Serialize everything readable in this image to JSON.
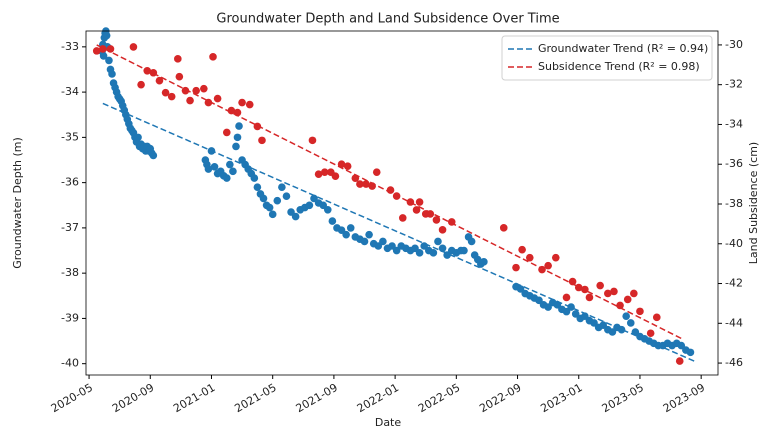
{
  "chart_data": {
    "type": "scatter",
    "title": "Groundwater Depth and Land Subsidence Over Time",
    "xlabel": "Date",
    "ylabel": "Groundwater Depth (m)",
    "y2label": "Land Subsidence (cm)",
    "xlim": [
      -0.2,
      41.1
    ],
    "xticks": [
      {
        "value": 0,
        "label": "2020-05"
      },
      {
        "value": 4,
        "label": "2020-09"
      },
      {
        "value": 8,
        "label": "2021-01"
      },
      {
        "value": 12,
        "label": "2021-05"
      },
      {
        "value": 16,
        "label": "2021-09"
      },
      {
        "value": 20,
        "label": "2022-01"
      },
      {
        "value": 24,
        "label": "2022-05"
      },
      {
        "value": 28,
        "label": "2022-09"
      },
      {
        "value": 32,
        "label": "2023-01"
      },
      {
        "value": 36,
        "label": "2023-05"
      },
      {
        "value": 40,
        "label": "2023-09"
      }
    ],
    "ylim": [
      -40.25,
      -32.65
    ],
    "yticks": [
      -40,
      -39,
      -38,
      -37,
      -36,
      -35,
      -34,
      -33
    ],
    "y2lim": [
      -46.6,
      -29.3
    ],
    "y2ticks": [
      -46,
      -44,
      -42,
      -40,
      -38,
      -36,
      -34,
      -32,
      -30
    ],
    "legend": "upper right",
    "series": [
      {
        "type": "scatter",
        "color": "#1f77b4",
        "x": [
          0.85,
          0.9,
          0.95,
          1.0,
          1.05,
          1.1,
          1.15,
          1.2,
          1.3,
          1.4,
          1.5,
          1.6,
          1.7,
          1.8,
          1.9,
          2.0,
          2.1,
          2.2,
          2.3,
          2.4,
          2.5,
          2.6,
          2.7,
          2.8,
          2.9,
          3.0,
          3.1,
          3.2,
          3.3,
          3.4,
          3.5,
          3.6,
          3.7,
          3.8,
          3.9,
          4.0,
          4.1,
          4.2,
          7.6,
          7.7,
          7.8,
          8.0,
          8.2,
          8.4,
          8.6,
          8.8,
          9.0,
          9.2,
          9.4,
          9.6,
          9.7,
          9.8,
          10.0,
          10.2,
          10.4,
          10.6,
          10.8,
          11.0,
          11.2,
          11.4,
          11.6,
          11.8,
          12.0,
          12.3,
          12.6,
          12.9,
          13.2,
          13.5,
          13.8,
          14.1,
          14.4,
          14.7,
          15.0,
          15.3,
          15.6,
          15.9,
          16.2,
          16.5,
          16.8,
          17.1,
          17.4,
          17.7,
          18.0,
          18.3,
          18.6,
          18.9,
          19.2,
          19.5,
          19.8,
          20.1,
          20.4,
          20.7,
          21.0,
          21.3,
          21.6,
          21.9,
          22.2,
          22.5,
          22.8,
          23.1,
          23.4,
          23.7,
          24.0,
          24.3,
          24.5,
          24.8,
          25.0,
          25.2,
          25.4,
          25.6,
          25.8,
          27.9,
          28.2,
          28.5,
          28.8,
          29.1,
          29.4,
          29.7,
          30.0,
          30.3,
          30.6,
          30.9,
          31.2,
          31.5,
          31.8,
          32.1,
          32.4,
          32.7,
          33.0,
          33.3,
          33.6,
          33.9,
          34.2,
          34.5,
          34.8,
          35.1,
          35.4,
          35.7,
          36.0,
          36.3,
          36.6,
          36.9,
          37.2,
          37.5,
          37.8,
          38.1,
          38.4,
          38.7,
          39.0,
          39.3
        ],
        "values": [
          -33.1,
          -32.95,
          -33.2,
          -32.8,
          -32.7,
          -32.65,
          -32.75,
          -33.0,
          -33.3,
          -33.5,
          -33.6,
          -33.8,
          -33.9,
          -34.0,
          -34.1,
          -34.15,
          -34.2,
          -34.3,
          -34.4,
          -34.5,
          -34.6,
          -34.7,
          -34.8,
          -34.85,
          -34.9,
          -35.0,
          -35.1,
          -35.0,
          -35.2,
          -35.15,
          -35.25,
          -35.2,
          -35.3,
          -35.2,
          -35.3,
          -35.25,
          -35.35,
          -35.4,
          -35.5,
          -35.6,
          -35.7,
          -35.3,
          -35.65,
          -35.8,
          -35.75,
          -35.85,
          -35.9,
          -35.6,
          -35.75,
          -35.2,
          -35.0,
          -34.75,
          -35.5,
          -35.6,
          -35.7,
          -35.8,
          -35.9,
          -36.1,
          -36.25,
          -36.35,
          -36.5,
          -36.55,
          -36.7,
          -36.4,
          -36.1,
          -36.3,
          -36.65,
          -36.75,
          -36.6,
          -36.55,
          -36.5,
          -36.35,
          -36.45,
          -36.5,
          -36.6,
          -36.85,
          -37.0,
          -37.05,
          -37.15,
          -37.0,
          -37.2,
          -37.25,
          -37.3,
          -37.15,
          -37.35,
          -37.4,
          -37.3,
          -37.45,
          -37.4,
          -37.5,
          -37.4,
          -37.45,
          -37.5,
          -37.45,
          -37.55,
          -37.4,
          -37.5,
          -37.55,
          -37.3,
          -37.45,
          -37.6,
          -37.5,
          -37.55,
          -37.5,
          -37.5,
          -37.2,
          -37.3,
          -37.6,
          -37.7,
          -37.8,
          -37.75,
          -38.3,
          -38.35,
          -38.45,
          -38.5,
          -38.55,
          -38.6,
          -38.7,
          -38.75,
          -38.65,
          -38.7,
          -38.8,
          -38.85,
          -38.75,
          -38.9,
          -39.0,
          -38.95,
          -39.05,
          -39.1,
          -39.2,
          -39.15,
          -39.25,
          -39.3,
          -39.2,
          -39.25,
          -38.95,
          -39.1,
          -39.3,
          -39.4,
          -39.45,
          -39.5,
          -39.55,
          -39.6,
          -39.6,
          -39.55,
          -39.6,
          -39.55,
          -39.6,
          -39.7,
          -39.75
        ]
      },
      {
        "type": "scatter",
        "color": "#d62728",
        "axis": "y2",
        "x": [
          0.5,
          0.9,
          1.4,
          2.9,
          3.4,
          3.8,
          4.2,
          4.6,
          5.0,
          5.4,
          5.8,
          5.9,
          6.3,
          6.6,
          7.0,
          7.5,
          7.8,
          8.1,
          8.4,
          9.0,
          9.3,
          9.7,
          10.0,
          10.5,
          11.0,
          11.3,
          14.6,
          15.0,
          15.4,
          15.8,
          16.1,
          16.5,
          16.9,
          17.4,
          17.7,
          18.1,
          18.5,
          18.8,
          19.7,
          20.1,
          20.5,
          21.0,
          21.4,
          21.6,
          22.0,
          22.3,
          22.7,
          23.1,
          23.7,
          27.1,
          27.9,
          28.3,
          28.8,
          29.6,
          30.0,
          30.5,
          31.2,
          31.6,
          32.0,
          32.4,
          32.7,
          33.4,
          33.9,
          34.3,
          34.7,
          35.2,
          35.6,
          36.0,
          36.7,
          37.1,
          38.6
        ],
        "values": [
          -30.3,
          -30.2,
          -30.2,
          -30.1,
          -32.0,
          -31.3,
          -31.4,
          -31.8,
          -32.4,
          -32.6,
          -30.7,
          -31.6,
          -32.3,
          -32.8,
          -32.3,
          -32.2,
          -32.9,
          -30.6,
          -32.7,
          -34.4,
          -33.3,
          -33.4,
          -32.9,
          -33.0,
          -34.1,
          -34.8,
          -34.8,
          -36.5,
          -36.4,
          -36.4,
          -36.6,
          -36.0,
          -36.1,
          -36.7,
          -37.0,
          -37.0,
          -37.1,
          -36.4,
          -37.3,
          -37.6,
          -38.7,
          -37.9,
          -38.3,
          -37.9,
          -38.5,
          -38.5,
          -38.8,
          -39.3,
          -38.9,
          -39.2,
          -41.2,
          -40.3,
          -40.7,
          -41.3,
          -41.1,
          -40.7,
          -42.7,
          -41.9,
          -42.2,
          -42.3,
          -42.7,
          -42.1,
          -42.5,
          -42.4,
          -43.1,
          -42.8,
          -42.5,
          -43.4,
          -44.5,
          -43.7,
          -45.9
        ]
      },
      {
        "type": "line",
        "name": "Groundwater Trend (R² = 0.94)",
        "color": "#1f77b4",
        "dashed": true,
        "x": [
          0.9,
          39.6
        ],
        "values": [
          -34.25,
          -39.95
        ]
      },
      {
        "type": "line",
        "name": "Subsidence Trend (R² = 0.98)",
        "color": "#d62728",
        "dashed": true,
        "axis": "y2",
        "x": [
          0.5,
          38.8
        ],
        "values": [
          -30.0,
          -44.8
        ]
      }
    ]
  }
}
